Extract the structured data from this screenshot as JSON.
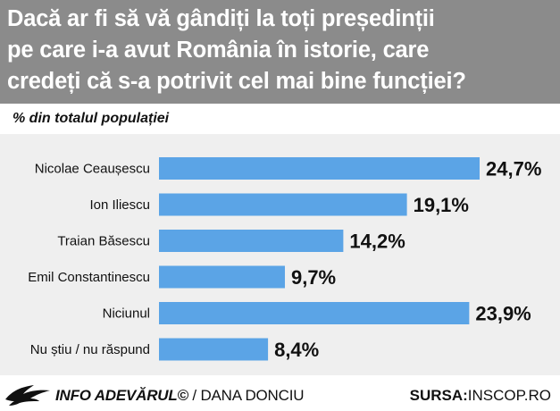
{
  "title": "Dacă ar fi să vă gândiți la toți președinții\npe care i-a avut România în istorie, care\ncredeți că s-a potrivit cel mai bine funcției?",
  "subtitle": "% din totalul populației",
  "footer": {
    "credit_brand": "INFO ADEVĂRUL©",
    "credit_author": " / DANA DONCIU",
    "source_label": "SURSA:",
    "source_value": "INSCOP.RO"
  },
  "colors": {
    "header": "#8b8b8b",
    "bar": "#5ba4e6",
    "plot_bg": "#efefef"
  },
  "chart_data": {
    "type": "bar",
    "orientation": "horizontal",
    "title": "Dacă ar fi să vă gândiți la toți președinții pe care i-a avut România în istorie, care credeți că s-a potrivit cel mai bine funcției?",
    "subtitle": "% din totalul populației",
    "categories": [
      "Nicolae Ceaușescu",
      "Ion Iliescu",
      "Traian Băsescu",
      "Emil Constantinescu",
      "Niciunul",
      "Nu știu / nu răspund"
    ],
    "values": [
      24.7,
      19.1,
      14.2,
      9.7,
      23.9,
      8.4
    ],
    "value_labels": [
      "24,7%",
      "19,1%",
      "14,2%",
      "9,7%",
      "23,9%",
      "8,4%"
    ],
    "xlim": [
      0,
      24.7
    ],
    "grid": false,
    "legend": "none"
  }
}
